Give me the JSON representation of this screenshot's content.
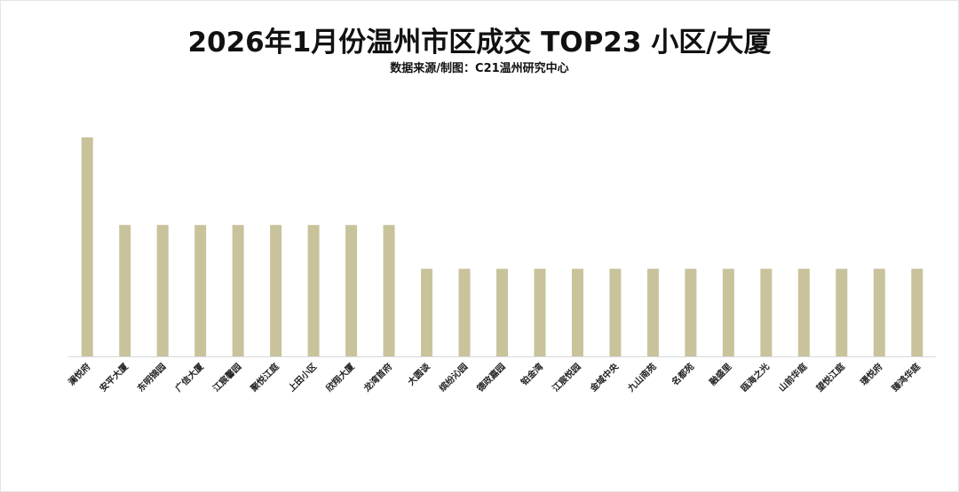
{
  "chart_data": {
    "type": "bar",
    "title": "2026年1月份温州市区成交 TOP23 小区/大厦",
    "subtitle": "数据来源/制图：C21温州研究中心",
    "categories": [
      "澜悦府",
      "安平大厦",
      "东明锦园",
      "广信大厦",
      "江宸馨园",
      "聚悦江庭",
      "上田小区",
      "欣翔大厦",
      "龙湾首府",
      "大圆谈",
      "缤纷沁园",
      "德政嘉园",
      "铂金湾",
      "江宸悦园",
      "金域中央",
      "九山南苑",
      "名都苑",
      "融盛里",
      "瓯海之光",
      "山前华庭",
      "望悦江庭",
      "璟悦府",
      "臻鸿华庭"
    ],
    "values": [
      5,
      3,
      3,
      3,
      3,
      3,
      3,
      3,
      3,
      2,
      2,
      2,
      2,
      2,
      2,
      2,
      2,
      2,
      2,
      2,
      2,
      2,
      2
    ],
    "ylim": [
      0,
      5
    ],
    "xlabel": "",
    "ylabel": "",
    "grid": false,
    "legend": "none",
    "bar_color": "#c8c39b",
    "axis_color": "#d9d9d9"
  }
}
